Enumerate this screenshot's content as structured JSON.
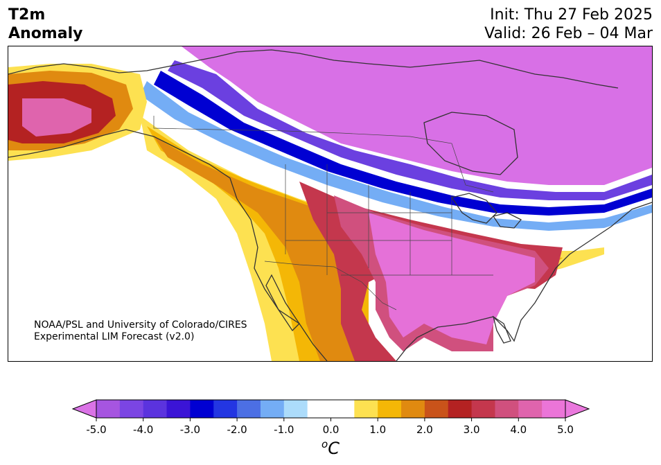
{
  "header": {
    "variable_line1": "T2m",
    "variable_line2": "Anomaly",
    "init_text": "Init: Thu 27 Feb 2025",
    "valid_text": "Valid: 26 Feb – 04 Mar"
  },
  "credit": {
    "line1": "NOAA/PSL and University of Colorado/CIRES",
    "line2": "Experimental LIM Forecast (v2.0)"
  },
  "colorbar": {
    "unit_base": "C",
    "unit_prefix": "o",
    "tick_labels": [
      "-5.0",
      "-4.0",
      "-3.0",
      "-2.0",
      "-1.0",
      "0.0",
      "1.0",
      "2.0",
      "3.0",
      "4.0",
      "5.0"
    ],
    "colors": [
      "#a655e0",
      "#7b45e3",
      "#5b33de",
      "#3b14d6",
      "#0000d2",
      "#2336e2",
      "#4c6fe4",
      "#74adf5",
      "#acdcfb",
      "#ffffff",
      "#ffffff",
      "#fde151",
      "#f4b706",
      "#e08a10",
      "#c9531a",
      "#b42222",
      "#c4374d",
      "#d0507e",
      "#df64ad",
      "#eb75d8"
    ],
    "under_color": "#da73e6",
    "over_color": "#ea78dd"
  },
  "legend_palette": {
    "ocean": "#ffffff",
    "coast": "#333333"
  }
}
